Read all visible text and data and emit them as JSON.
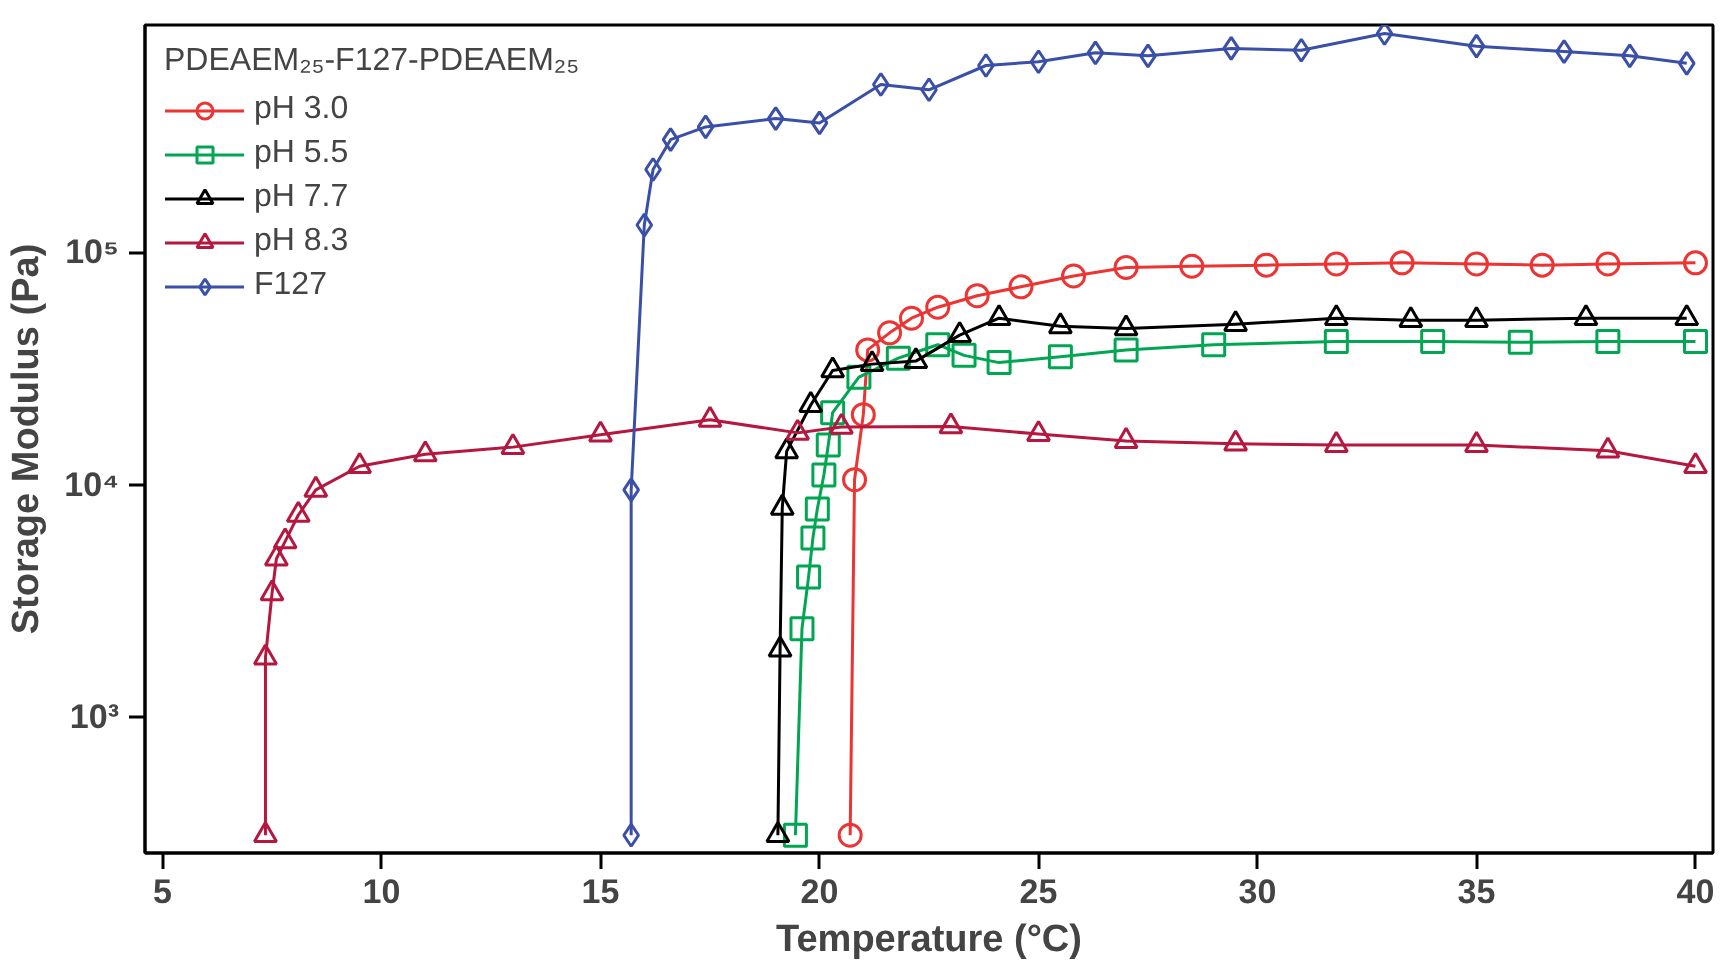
{
  "chart_data": {
    "type": "line",
    "xlabel": "Temperature (°C)",
    "ylabel": "Storage Modulus (Pa)",
    "legend_title": "PDEAEM₂₅-F127-PDEAEM₂₅",
    "log": "y",
    "grid": false,
    "legend": "top left",
    "line_style": "solid",
    "xlim": [
      4.6,
      40.4
    ],
    "xticks": [
      5,
      10,
      15,
      20,
      25,
      30,
      35,
      40
    ],
    "ylim": [
      260,
      950000
    ],
    "yticks": [
      {
        "value": 1000,
        "label": "10³"
      },
      {
        "value": 10000,
        "label": "10⁴"
      },
      {
        "value": 100000,
        "label": "10⁵"
      }
    ],
    "series": [
      {
        "name": "pH 3.0",
        "color": "#ee3333",
        "marker": "circle",
        "x": [
          20.7,
          20.8,
          21.0,
          21.1,
          21.6,
          22.1,
          22.7,
          23.6,
          24.6,
          25.8,
          27.0,
          28.5,
          30.2,
          31.8,
          33.3,
          35.0,
          36.5,
          38.0,
          40.0
        ],
        "values": [
          310,
          10500,
          20000,
          38000,
          45000,
          52000,
          58000,
          65000,
          71000,
          79000,
          86000,
          87000,
          88000,
          89000,
          90000,
          89000,
          88000,
          89000,
          90000
        ]
      },
      {
        "name": "pH 5.5",
        "color": "#00a651",
        "marker": "square",
        "x": [
          19.45,
          19.6,
          19.75,
          19.85,
          19.95,
          20.1,
          20.2,
          20.3,
          20.9,
          21.8,
          22.7,
          23.3,
          24.1,
          25.5,
          27.0,
          29.0,
          31.8,
          34.0,
          36.0,
          38.0,
          40.0
        ],
        "values": [
          310,
          2400,
          4000,
          5900,
          7850,
          11000,
          14800,
          20400,
          29000,
          35000,
          40000,
          36000,
          33500,
          35500,
          38000,
          40000,
          41300,
          41300,
          41000,
          41300,
          41300
        ]
      },
      {
        "name": "pH 7.7",
        "color": "#000000",
        "marker": "triangle",
        "x": [
          19.05,
          19.1,
          19.15,
          19.25,
          19.8,
          20.3,
          21.2,
          22.2,
          23.2,
          24.1,
          25.5,
          27.0,
          29.5,
          31.8,
          33.5,
          35.0,
          37.5,
          39.8
        ],
        "values": [
          310,
          1950,
          7950,
          13900,
          22000,
          31000,
          33000,
          34000,
          44000,
          52000,
          48000,
          47000,
          49000,
          52000,
          51000,
          51000,
          52000,
          52000
        ]
      },
      {
        "name": "pH 8.3",
        "color": "#b5173f",
        "marker": "triangle",
        "x": [
          7.35,
          7.35,
          7.5,
          7.6,
          7.8,
          8.1,
          8.5,
          9.5,
          11.0,
          13.0,
          15.0,
          17.5,
          19.5,
          20.5,
          23.0,
          25.0,
          27.0,
          29.5,
          31.8,
          35.0,
          38.0,
          40.0
        ],
        "values": [
          310,
          1800,
          3400,
          4800,
          5700,
          7400,
          9500,
          12000,
          13500,
          14500,
          16400,
          19000,
          16700,
          17700,
          17800,
          16500,
          15400,
          15000,
          14800,
          14800,
          14000,
          12000
        ]
      },
      {
        "name": "F127",
        "color": "#3a4fa8",
        "marker": "diamond",
        "x": [
          15.7,
          15.7,
          16.0,
          16.2,
          16.6,
          17.4,
          19.0,
          20.0,
          21.4,
          22.5,
          23.8,
          25.0,
          26.3,
          27.5,
          29.4,
          31.0,
          32.9,
          35.0,
          37.0,
          38.5,
          39.8
        ],
        "values": [
          310,
          9500,
          131000,
          227000,
          305000,
          346000,
          376000,
          360000,
          527000,
          500000,
          636000,
          660000,
          721000,
          700000,
          753000,
          740000,
          873000,
          770000,
          730000,
          700000,
          650000
        ]
      }
    ]
  }
}
